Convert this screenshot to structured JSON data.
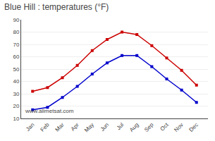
{
  "chart_data": {
    "type": "line",
    "title": "Blue Hill : temperatures (°F)",
    "categories": [
      "Jan",
      "Feb",
      "Mar",
      "Apr",
      "May",
      "Jun",
      "Jul",
      "Aug",
      "Sep",
      "Oct",
      "Nov",
      "Dec"
    ],
    "series": [
      {
        "color": "#cc0000",
        "values": [
          32,
          35,
          43,
          53,
          65,
          74,
          80,
          78,
          69,
          59,
          49,
          37
        ]
      },
      {
        "color": "#0000cc",
        "values": [
          17,
          19,
          27,
          36,
          46,
          55,
          61,
          61,
          52,
          42,
          33,
          23
        ]
      }
    ],
    "ylim": [
      10,
      90
    ],
    "yticks": [
      10,
      20,
      30,
      40,
      50,
      60,
      70,
      80,
      90
    ],
    "grid": true,
    "marker": "square",
    "annotations": [
      "www.allmetsat.com"
    ]
  }
}
